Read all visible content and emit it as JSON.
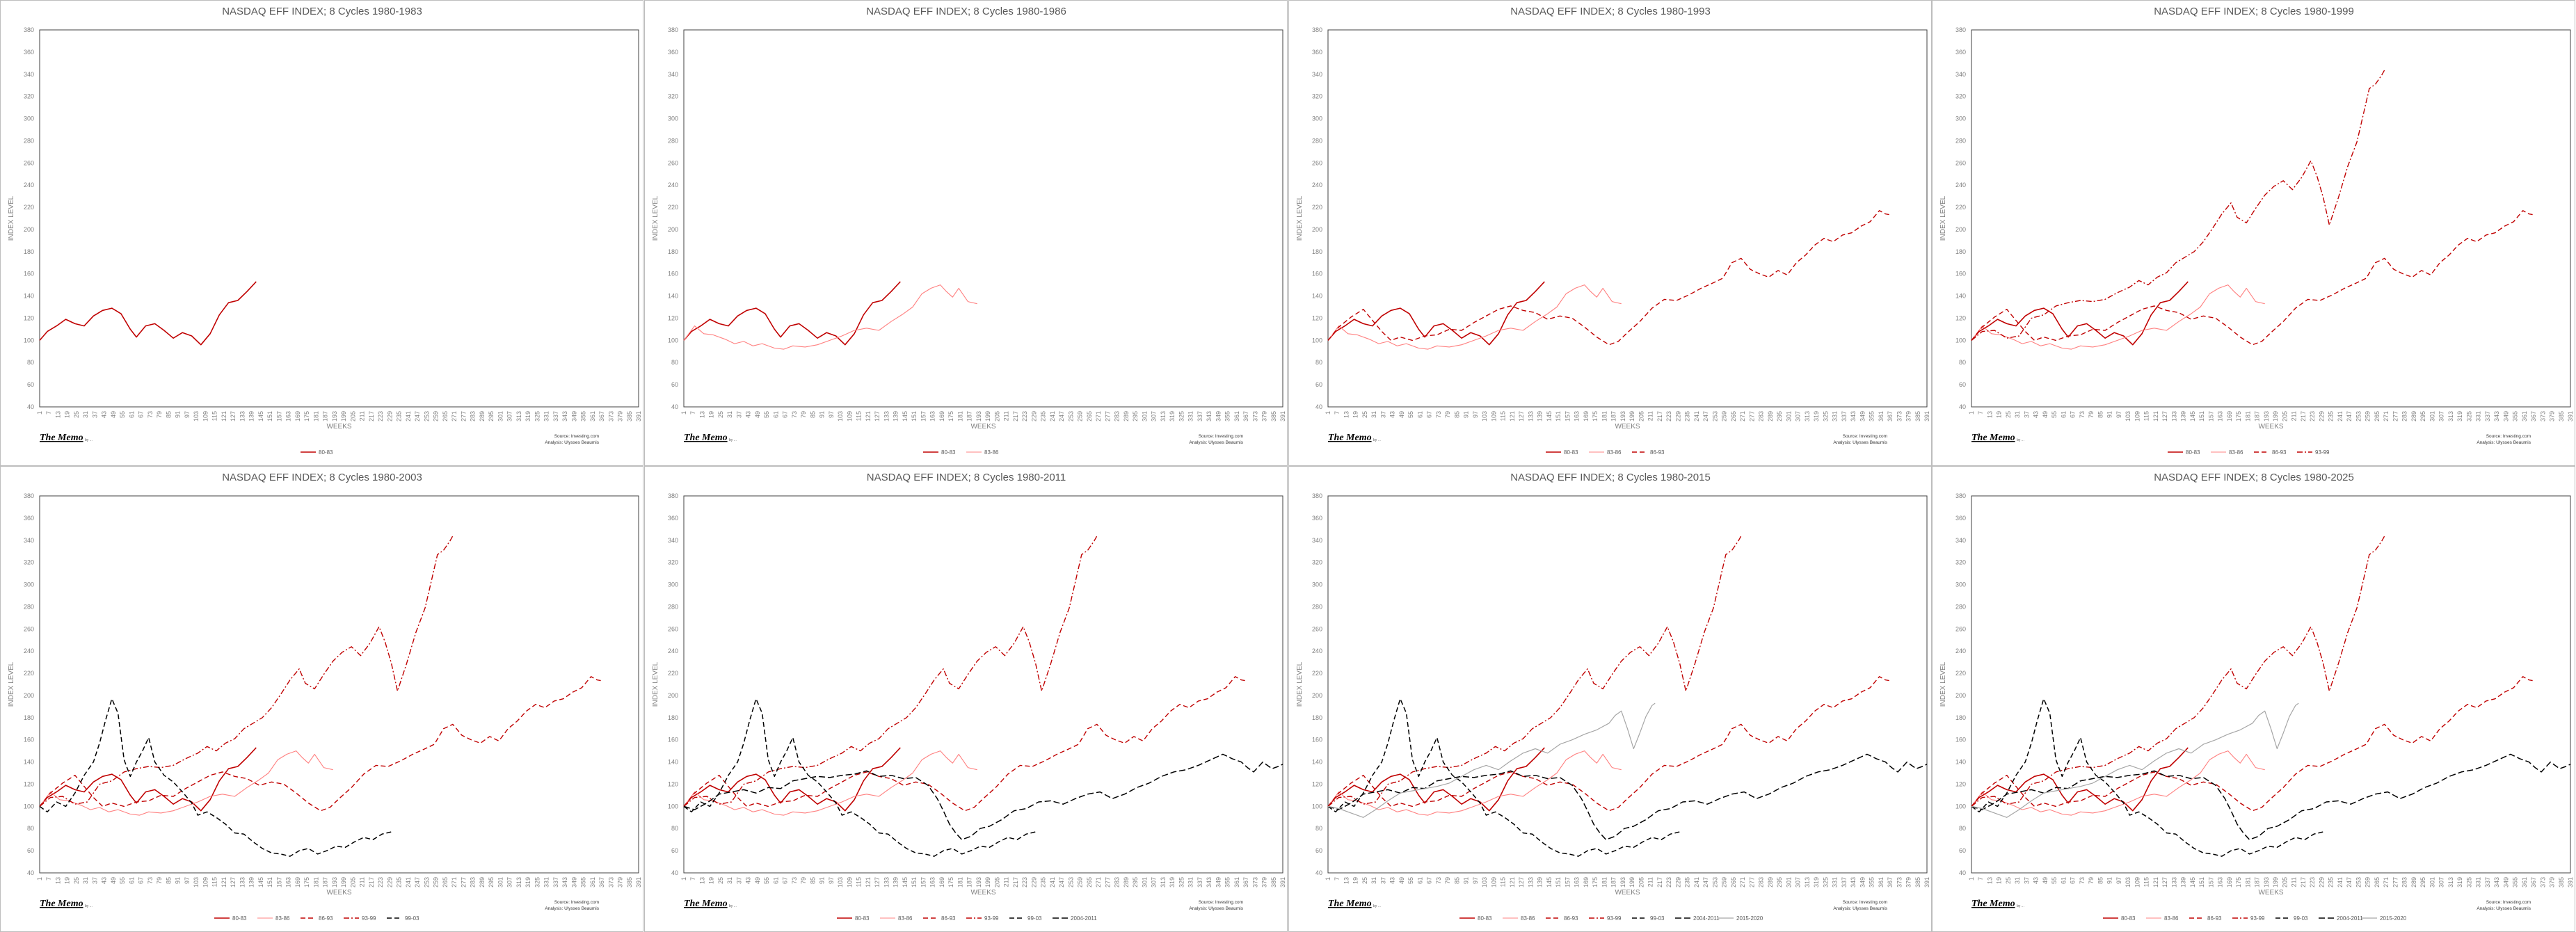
{
  "panels": [
    {
      "title": "NASDAQ EFF INDEX; 8 Cycles 1980-1983",
      "series": [
        "80-83"
      ]
    },
    {
      "title": "NASDAQ EFF INDEX; 8 Cycles 1980-1986",
      "series": [
        "80-83",
        "83-86"
      ]
    },
    {
      "title": "NASDAQ EFF INDEX; 8 Cycles 1980-1993",
      "series": [
        "80-83",
        "83-86",
        "86-93"
      ]
    },
    {
      "title": "NASDAQ EFF INDEX; 8 Cycles 1980-1999",
      "series": [
        "80-83",
        "83-86",
        "86-93",
        "93-99"
      ]
    },
    {
      "title": "NASDAQ EFF INDEX; 8 Cycles 1980-2003",
      "series": [
        "80-83",
        "83-86",
        "86-93",
        "93-99",
        "99-03"
      ]
    },
    {
      "title": "NASDAQ EFF INDEX; 8 Cycles 1980-2011",
      "series": [
        "80-83",
        "83-86",
        "86-93",
        "93-99",
        "99-03",
        "2004-2011"
      ]
    },
    {
      "title": "NASDAQ EFF INDEX; 8 Cycles 1980-2015",
      "series": [
        "80-83",
        "83-86",
        "86-93",
        "93-99",
        "99-03",
        "2004-2011",
        "2015-2020"
      ]
    },
    {
      "title": "NASDAQ EFF INDEX; 8 Cycles 1980-2025",
      "series": [
        "80-83",
        "83-86",
        "86-93",
        "93-99",
        "99-03",
        "2004-2011",
        "2015-2020"
      ]
    }
  ],
  "common": {
    "xlabel": "WEEKS",
    "ylabel": "INDEX LEVEL",
    "logo": "The Memo",
    "logo_sub": "by ...",
    "source_line1": "Source: Investing.com",
    "source_line2": "Analysis: Ulysses Beaumis"
  },
  "chart_data": {
    "type": "line",
    "ylim": [
      40,
      380
    ],
    "yticks": [
      40,
      60,
      80,
      100,
      120,
      140,
      160,
      180,
      200,
      220,
      240,
      260,
      280,
      300,
      320,
      340,
      360,
      380
    ],
    "xlim": [
      1,
      391
    ],
    "xtick_step": 6,
    "grid": false,
    "legend": "bottom",
    "series": [
      {
        "name": "80-83",
        "color": "#c00000",
        "dash": "",
        "width": 1.6,
        "points": [
          [
            1,
            100
          ],
          [
            6,
            108
          ],
          [
            12,
            113
          ],
          [
            18,
            119
          ],
          [
            24,
            115
          ],
          [
            30,
            113
          ],
          [
            36,
            122
          ],
          [
            42,
            127
          ],
          [
            48,
            129
          ],
          [
            54,
            124
          ],
          [
            60,
            110
          ],
          [
            64,
            103
          ],
          [
            70,
            113
          ],
          [
            76,
            115
          ],
          [
            82,
            109
          ],
          [
            88,
            102
          ],
          [
            94,
            107
          ],
          [
            100,
            104
          ],
          [
            106,
            96
          ],
          [
            112,
            106
          ],
          [
            118,
            123
          ],
          [
            124,
            134
          ],
          [
            130,
            136
          ],
          [
            136,
            144
          ],
          [
            142,
            153
          ]
        ]
      },
      {
        "name": "83-86",
        "color": "#ff8080",
        "dash": "",
        "width": 1.1,
        "points": [
          [
            1,
            100
          ],
          [
            8,
            113
          ],
          [
            14,
            106
          ],
          [
            20,
            105
          ],
          [
            28,
            101
          ],
          [
            34,
            97
          ],
          [
            40,
            99
          ],
          [
            46,
            95
          ],
          [
            52,
            97
          ],
          [
            60,
            93
          ],
          [
            66,
            92
          ],
          [
            72,
            95
          ],
          [
            80,
            94
          ],
          [
            88,
            96
          ],
          [
            96,
            100
          ],
          [
            104,
            104
          ],
          [
            112,
            109
          ],
          [
            120,
            111
          ],
          [
            128,
            109
          ],
          [
            136,
            117
          ],
          [
            144,
            124
          ],
          [
            150,
            130
          ],
          [
            156,
            142
          ],
          [
            162,
            147
          ],
          [
            168,
            150
          ],
          [
            172,
            144
          ],
          [
            176,
            139
          ],
          [
            180,
            147
          ],
          [
            186,
            135
          ],
          [
            192,
            133
          ]
        ]
      },
      {
        "name": "86-93",
        "color": "#c00000",
        "dash": "7,4",
        "width": 1.4,
        "points": [
          [
            1,
            100
          ],
          [
            8,
            112
          ],
          [
            16,
            121
          ],
          [
            24,
            128
          ],
          [
            30,
            118
          ],
          [
            36,
            108
          ],
          [
            42,
            100
          ],
          [
            48,
            103
          ],
          [
            56,
            100
          ],
          [
            64,
            104
          ],
          [
            72,
            105
          ],
          [
            80,
            110
          ],
          [
            88,
            109
          ],
          [
            96,
            116
          ],
          [
            104,
            122
          ],
          [
            112,
            128
          ],
          [
            120,
            131
          ],
          [
            128,
            127
          ],
          [
            136,
            125
          ],
          [
            144,
            119
          ],
          [
            152,
            122
          ],
          [
            160,
            120
          ],
          [
            168,
            112
          ],
          [
            176,
            103
          ],
          [
            184,
            96
          ],
          [
            190,
            99
          ],
          [
            196,
            107
          ],
          [
            204,
            117
          ],
          [
            212,
            129
          ],
          [
            220,
            137
          ],
          [
            228,
            136
          ],
          [
            236,
            141
          ],
          [
            244,
            147
          ],
          [
            252,
            152
          ],
          [
            258,
            156
          ],
          [
            264,
            170
          ],
          [
            270,
            174
          ],
          [
            276,
            164
          ],
          [
            282,
            160
          ],
          [
            288,
            157
          ],
          [
            294,
            163
          ],
          [
            300,
            159
          ],
          [
            306,
            170
          ],
          [
            312,
            177
          ],
          [
            318,
            186
          ],
          [
            324,
            192
          ],
          [
            330,
            189
          ],
          [
            336,
            195
          ],
          [
            342,
            197
          ],
          [
            348,
            203
          ],
          [
            354,
            207
          ],
          [
            360,
            217
          ],
          [
            364,
            214
          ],
          [
            368,
            213
          ]
        ]
      },
      {
        "name": "93-99",
        "color": "#c00000",
        "dash": "8,3,2,3",
        "width": 1.4,
        "points": [
          [
            1,
            100
          ],
          [
            8,
            108
          ],
          [
            16,
            109
          ],
          [
            24,
            102
          ],
          [
            32,
            104
          ],
          [
            40,
            120
          ],
          [
            48,
            123
          ],
          [
            56,
            131
          ],
          [
            64,
            134
          ],
          [
            72,
            136
          ],
          [
            80,
            135
          ],
          [
            88,
            137
          ],
          [
            96,
            143
          ],
          [
            104,
            148
          ],
          [
            110,
            154
          ],
          [
            116,
            150
          ],
          [
            122,
            157
          ],
          [
            128,
            161
          ],
          [
            134,
            170
          ],
          [
            140,
            175
          ],
          [
            146,
            180
          ],
          [
            152,
            189
          ],
          [
            158,
            201
          ],
          [
            164,
            214
          ],
          [
            170,
            224
          ],
          [
            174,
            211
          ],
          [
            180,
            206
          ],
          [
            186,
            219
          ],
          [
            192,
            231
          ],
          [
            198,
            239
          ],
          [
            204,
            244
          ],
          [
            210,
            236
          ],
          [
            216,
            247
          ],
          [
            222,
            262
          ],
          [
            226,
            248
          ],
          [
            230,
            229
          ],
          [
            234,
            204
          ],
          [
            240,
            229
          ],
          [
            246,
            257
          ],
          [
            252,
            279
          ],
          [
            256,
            303
          ],
          [
            260,
            327
          ],
          [
            264,
            331
          ],
          [
            268,
            339
          ],
          [
            270,
            344
          ]
        ]
      },
      {
        "name": "99-03",
        "color": "#000000",
        "dash": "7,4",
        "width": 1.5,
        "points": [
          [
            1,
            100
          ],
          [
            6,
            95
          ],
          [
            12,
            104
          ],
          [
            18,
            100
          ],
          [
            24,
            112
          ],
          [
            30,
            128
          ],
          [
            36,
            140
          ],
          [
            40,
            157
          ],
          [
            44,
            178
          ],
          [
            48,
            197
          ],
          [
            52,
            184
          ],
          [
            56,
            142
          ],
          [
            60,
            127
          ],
          [
            64,
            140
          ],
          [
            68,
            150
          ],
          [
            72,
            162
          ],
          [
            76,
            140
          ],
          [
            82,
            128
          ],
          [
            88,
            122
          ],
          [
            94,
            113
          ],
          [
            100,
            103
          ],
          [
            104,
            92
          ],
          [
            110,
            95
          ],
          [
            116,
            90
          ],
          [
            122,
            84
          ],
          [
            128,
            76
          ],
          [
            134,
            75
          ],
          [
            140,
            68
          ],
          [
            146,
            62
          ],
          [
            152,
            58
          ],
          [
            158,
            57
          ],
          [
            164,
            55
          ],
          [
            170,
            60
          ],
          [
            176,
            62
          ],
          [
            182,
            57
          ],
          [
            188,
            60
          ],
          [
            194,
            64
          ],
          [
            200,
            63
          ],
          [
            206,
            68
          ],
          [
            212,
            72
          ],
          [
            218,
            70
          ],
          [
            224,
            75
          ],
          [
            230,
            77
          ]
        ]
      },
      {
        "name": "2004-2011",
        "color": "#000000",
        "dash": "9,4",
        "width": 1.5,
        "points": [
          [
            1,
            100
          ],
          [
            8,
            97
          ],
          [
            16,
            103
          ],
          [
            24,
            111
          ],
          [
            32,
            113
          ],
          [
            40,
            115
          ],
          [
            48,
            112
          ],
          [
            56,
            117
          ],
          [
            64,
            116
          ],
          [
            72,
            123
          ],
          [
            80,
            125
          ],
          [
            88,
            127
          ],
          [
            96,
            126
          ],
          [
            104,
            128
          ],
          [
            112,
            129
          ],
          [
            120,
            132
          ],
          [
            128,
            127
          ],
          [
            136,
            128
          ],
          [
            144,
            125
          ],
          [
            152,
            126
          ],
          [
            160,
            119
          ],
          [
            166,
            107
          ],
          [
            170,
            96
          ],
          [
            174,
            84
          ],
          [
            178,
            76
          ],
          [
            182,
            70
          ],
          [
            188,
            73
          ],
          [
            194,
            80
          ],
          [
            200,
            82
          ],
          [
            208,
            88
          ],
          [
            216,
            96
          ],
          [
            224,
            98
          ],
          [
            232,
            104
          ],
          [
            240,
            105
          ],
          [
            248,
            102
          ],
          [
            256,
            107
          ],
          [
            264,
            111
          ],
          [
            272,
            113
          ],
          [
            280,
            107
          ],
          [
            288,
            111
          ],
          [
            296,
            117
          ],
          [
            304,
            121
          ],
          [
            312,
            127
          ],
          [
            320,
            131
          ],
          [
            328,
            133
          ],
          [
            336,
            137
          ],
          [
            344,
            142
          ],
          [
            352,
            147
          ],
          [
            358,
            143
          ],
          [
            364,
            140
          ],
          [
            368,
            135
          ],
          [
            372,
            131
          ],
          [
            378,
            140
          ],
          [
            384,
            134
          ],
          [
            388,
            136
          ],
          [
            391,
            138
          ]
        ]
      },
      {
        "name": "2015-2020",
        "color": "#a6a6a6",
        "dash": "",
        "width": 1.2,
        "points": [
          [
            1,
            100
          ],
          [
            8,
            98
          ],
          [
            16,
            94
          ],
          [
            24,
            90
          ],
          [
            32,
            97
          ],
          [
            40,
            105
          ],
          [
            48,
            112
          ],
          [
            56,
            114
          ],
          [
            64,
            116
          ],
          [
            72,
            118
          ],
          [
            80,
            121
          ],
          [
            88,
            127
          ],
          [
            96,
            133
          ],
          [
            104,
            137
          ],
          [
            112,
            133
          ],
          [
            120,
            141
          ],
          [
            128,
            148
          ],
          [
            136,
            152
          ],
          [
            144,
            148
          ],
          [
            152,
            156
          ],
          [
            160,
            160
          ],
          [
            168,
            165
          ],
          [
            176,
            169
          ],
          [
            184,
            175
          ],
          [
            188,
            182
          ],
          [
            192,
            186
          ],
          [
            196,
            170
          ],
          [
            200,
            152
          ],
          [
            204,
            166
          ],
          [
            208,
            181
          ],
          [
            212,
            191
          ],
          [
            214,
            193
          ]
        ]
      }
    ]
  }
}
